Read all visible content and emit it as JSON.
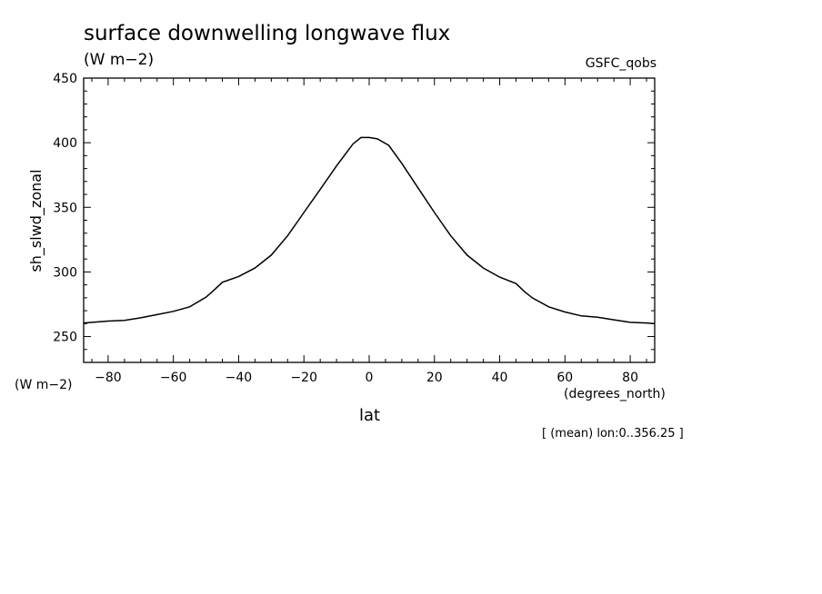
{
  "chart_data": {
    "type": "line",
    "title": "surface downwelling longwave flux",
    "units": "(W m−2)",
    "dataset": "GSFC_qobs",
    "ylabel": "sh_slwd_zonal",
    "yunits": "(W m−2)",
    "xlabel": "lat",
    "xunits": "(degrees_north)",
    "note": "[ (mean) lon:0..356.25 ]",
    "xlim": [
      -87.5,
      87.5
    ],
    "ylim": [
      230,
      450
    ],
    "xticks": [
      -80,
      -60,
      -40,
      -20,
      0,
      20,
      40,
      60,
      80
    ],
    "xtick_labels": [
      "−80",
      "−60",
      "−40",
      "−20",
      "0",
      "20",
      "40",
      "60",
      "80"
    ],
    "yticks": [
      250,
      300,
      350,
      400,
      450
    ],
    "ytick_labels": [
      "250",
      "300",
      "350",
      "400",
      "450"
    ],
    "grid": false,
    "series": [
      {
        "x": [
          -87.5,
          -80,
          -75,
          -70,
          -65,
          -60,
          -55,
          -50,
          -47.5,
          -45,
          -40,
          -35,
          -30,
          -25,
          -20,
          -15,
          -10,
          -5,
          -2.5,
          0,
          2.5,
          6,
          10,
          15,
          20,
          25,
          30,
          35,
          40,
          45,
          47.5,
          50,
          55,
          60,
          65,
          70,
          75,
          80,
          85,
          87.5
        ],
        "y": [
          260.5,
          262,
          262.5,
          264.5,
          267,
          269.5,
          273,
          280.5,
          286,
          292,
          296.5,
          303,
          313,
          328,
          346,
          364,
          382,
          399,
          404,
          404,
          403,
          398,
          384,
          365,
          346,
          328,
          313,
          303,
          296,
          291,
          285,
          280,
          273,
          269,
          266,
          265,
          263,
          261,
          260.5,
          260
        ]
      }
    ]
  }
}
